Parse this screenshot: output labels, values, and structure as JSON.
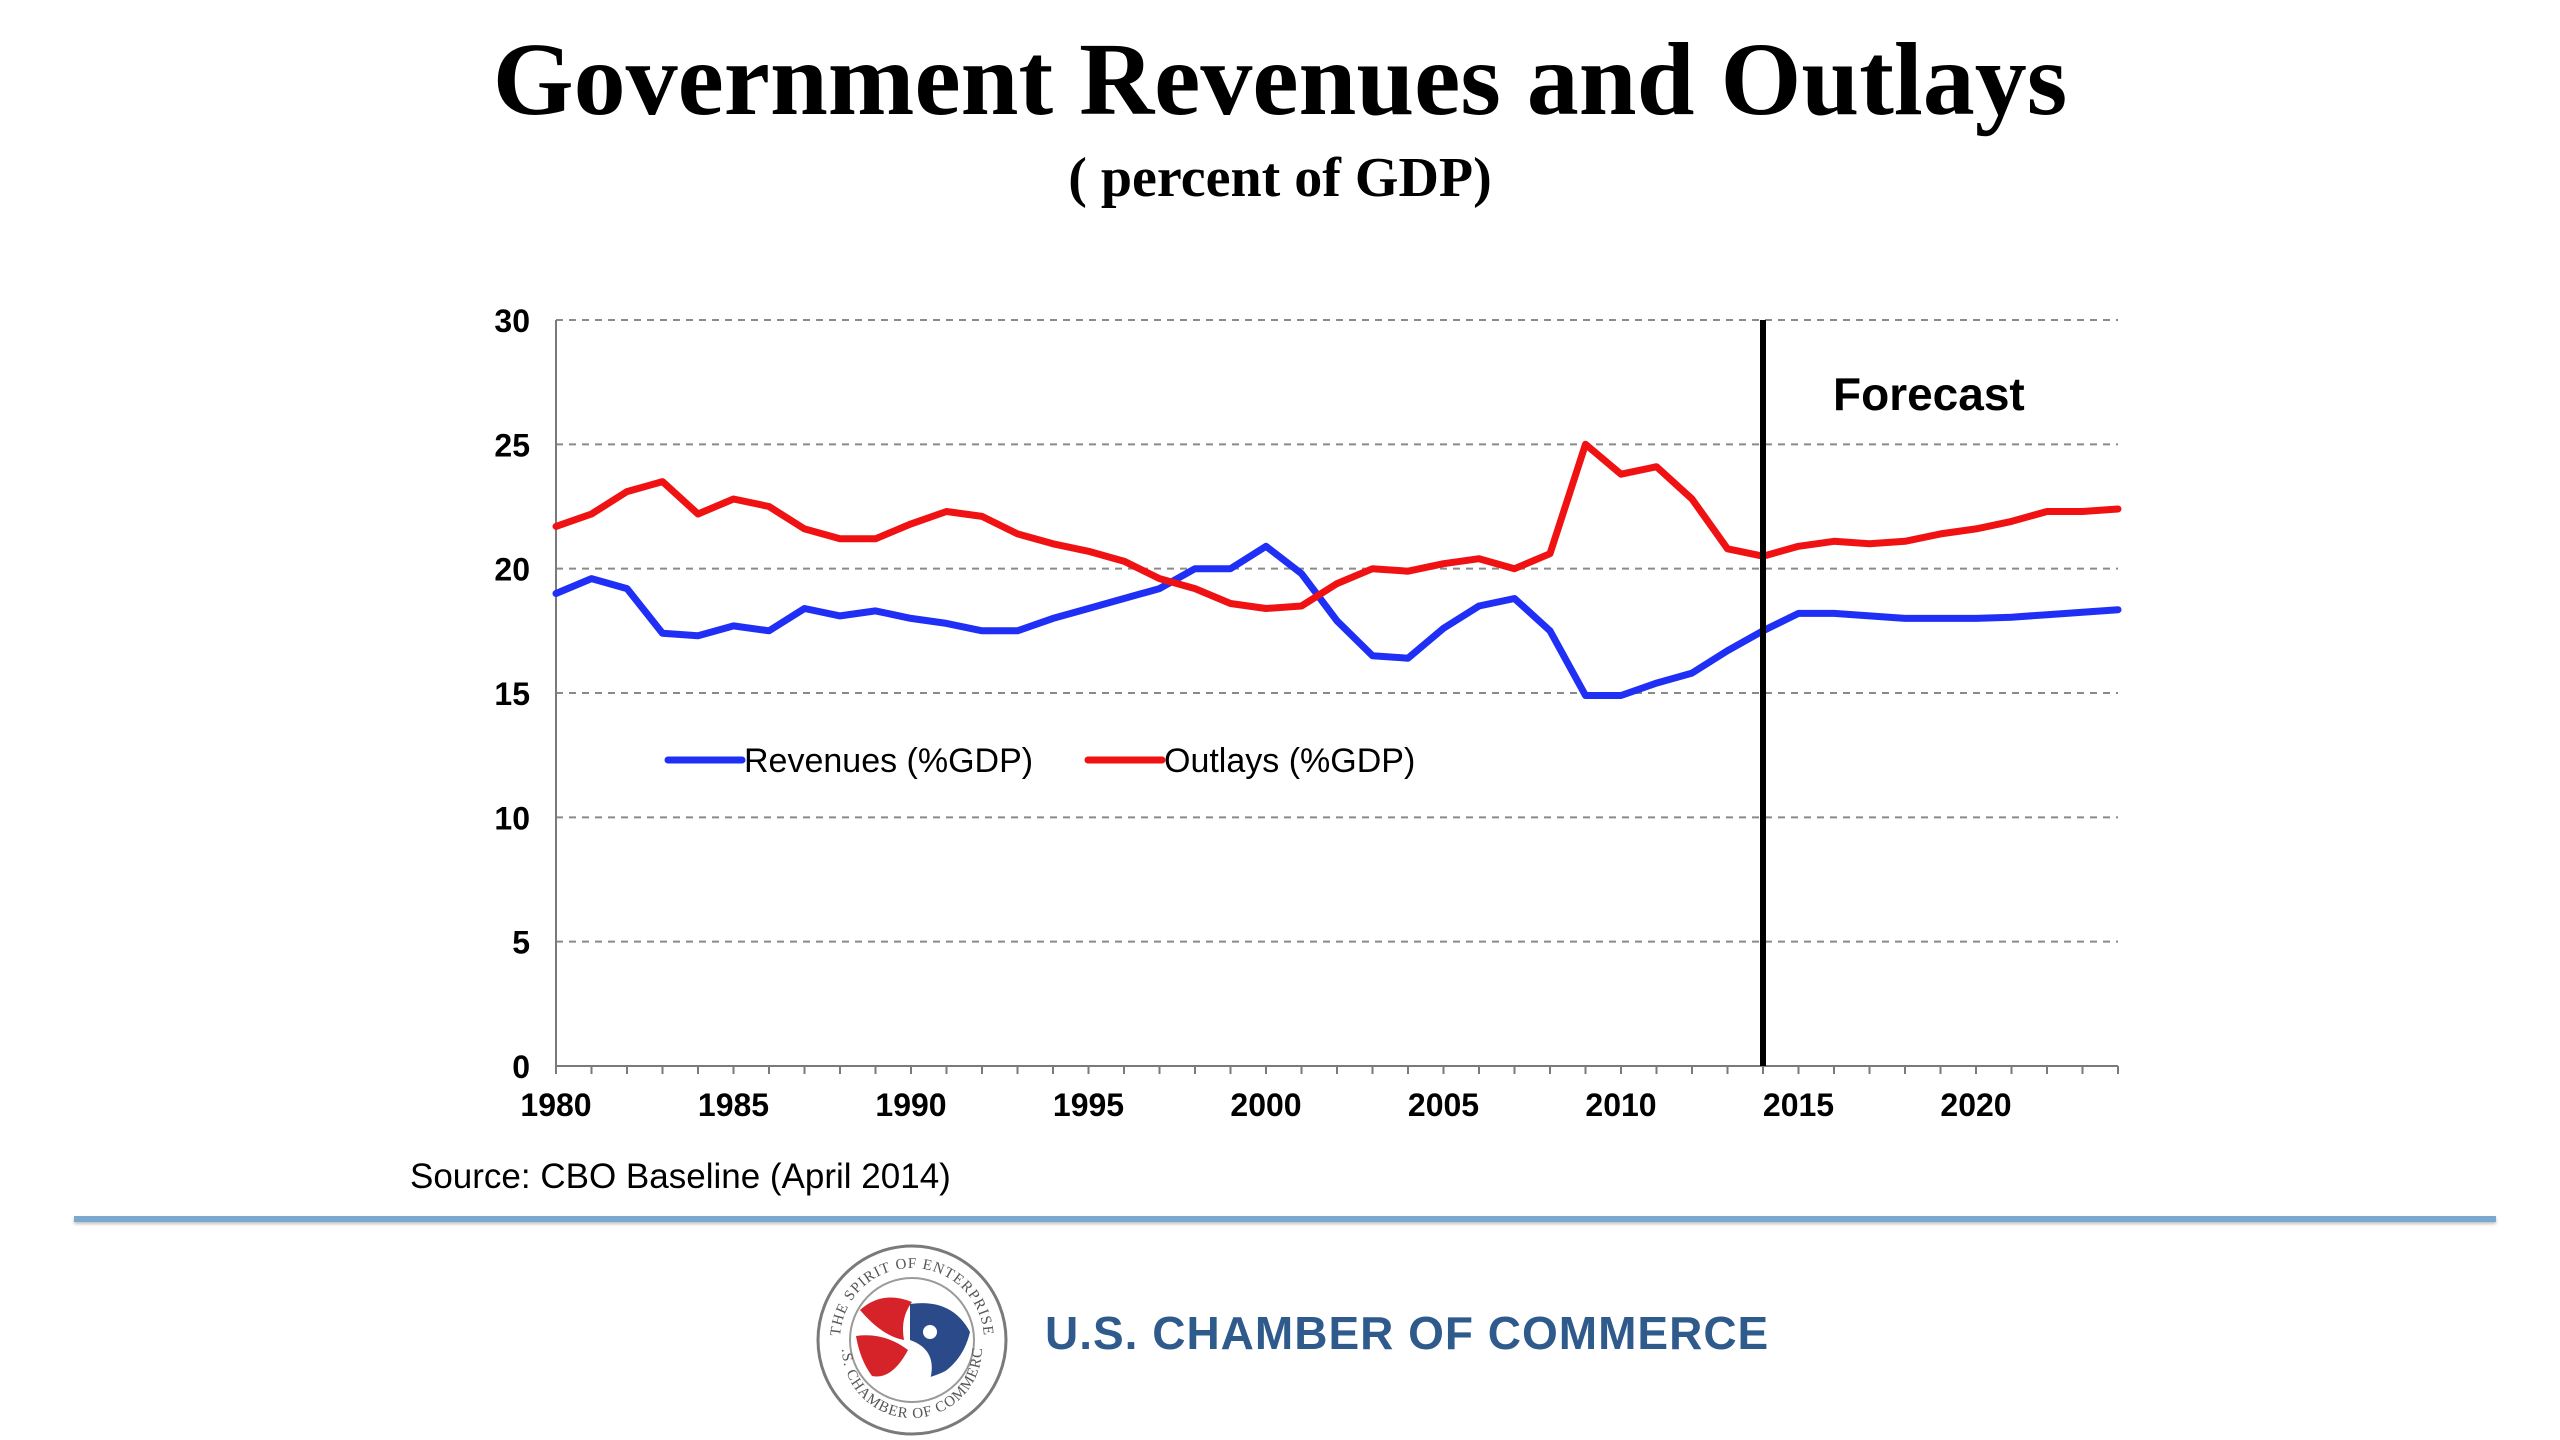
{
  "slide": {
    "title": "Government Revenues and Outlays",
    "subtitle": "( percent of GDP)",
    "source": "Source: CBO Baseline (April 2014)",
    "organization": "U.S. CHAMBER OF COMMERCE",
    "logo_text_top": "THE SPIRIT OF ENTERPRISE",
    "logo_text_bottom": "U.S. CHAMBER OF COMMERCE",
    "rule_color": "#7ba8cf",
    "org_color": "#2f5a8c"
  },
  "chart_data": {
    "type": "line",
    "title": "Government Revenues and Outlays",
    "subtitle": "( percent of GDP)",
    "xlabel": "",
    "ylabel": "",
    "xlim": [
      1980,
      2024
    ],
    "ylim": [
      0,
      30
    ],
    "x_ticks": [
      1980,
      1985,
      1990,
      1995,
      2000,
      2005,
      2010,
      2015,
      2020
    ],
    "y_ticks": [
      0,
      5,
      10,
      15,
      20,
      25,
      30
    ],
    "grid": "horizontal-dashed",
    "legend_placement": "center-left",
    "annotation": {
      "label": "Forecast",
      "x": 2014
    },
    "x": [
      1980,
      1981,
      1982,
      1983,
      1984,
      1985,
      1986,
      1987,
      1988,
      1989,
      1990,
      1991,
      1992,
      1993,
      1994,
      1995,
      1996,
      1997,
      1998,
      1999,
      2000,
      2001,
      2002,
      2003,
      2004,
      2005,
      2006,
      2007,
      2008,
      2009,
      2010,
      2011,
      2012,
      2013,
      2014,
      2015,
      2016,
      2017,
      2018,
      2019,
      2020,
      2021,
      2022,
      2023,
      2024
    ],
    "series": [
      {
        "name": "Revenues (%GDP)",
        "color": "#1f2ff5",
        "values": [
          19.0,
          19.6,
          19.2,
          17.4,
          17.3,
          17.7,
          17.5,
          18.4,
          18.1,
          18.3,
          18.0,
          17.8,
          17.5,
          17.5,
          18.0,
          18.4,
          18.8,
          19.2,
          20.0,
          20.0,
          20.9,
          19.8,
          17.9,
          16.5,
          16.4,
          17.6,
          18.5,
          18.8,
          17.5,
          14.9,
          14.9,
          15.4,
          15.8,
          16.7,
          17.5,
          18.2,
          18.2,
          18.1,
          18.0,
          18.0,
          18.0,
          18.05,
          18.15,
          18.25,
          18.35
        ]
      },
      {
        "name": "Outlays (%GDP)",
        "color": "#f01212",
        "values": [
          21.7,
          22.2,
          23.1,
          23.5,
          22.2,
          22.8,
          22.5,
          21.6,
          21.2,
          21.2,
          21.8,
          22.3,
          22.1,
          21.4,
          21.0,
          20.7,
          20.3,
          19.6,
          19.2,
          18.6,
          18.4,
          18.5,
          19.4,
          20.0,
          19.9,
          20.2,
          20.4,
          20.0,
          20.6,
          25.0,
          23.8,
          24.1,
          22.8,
          20.8,
          20.5,
          20.9,
          21.1,
          21.0,
          21.1,
          21.4,
          21.6,
          21.9,
          22.3,
          22.3,
          22.4
        ]
      }
    ]
  }
}
